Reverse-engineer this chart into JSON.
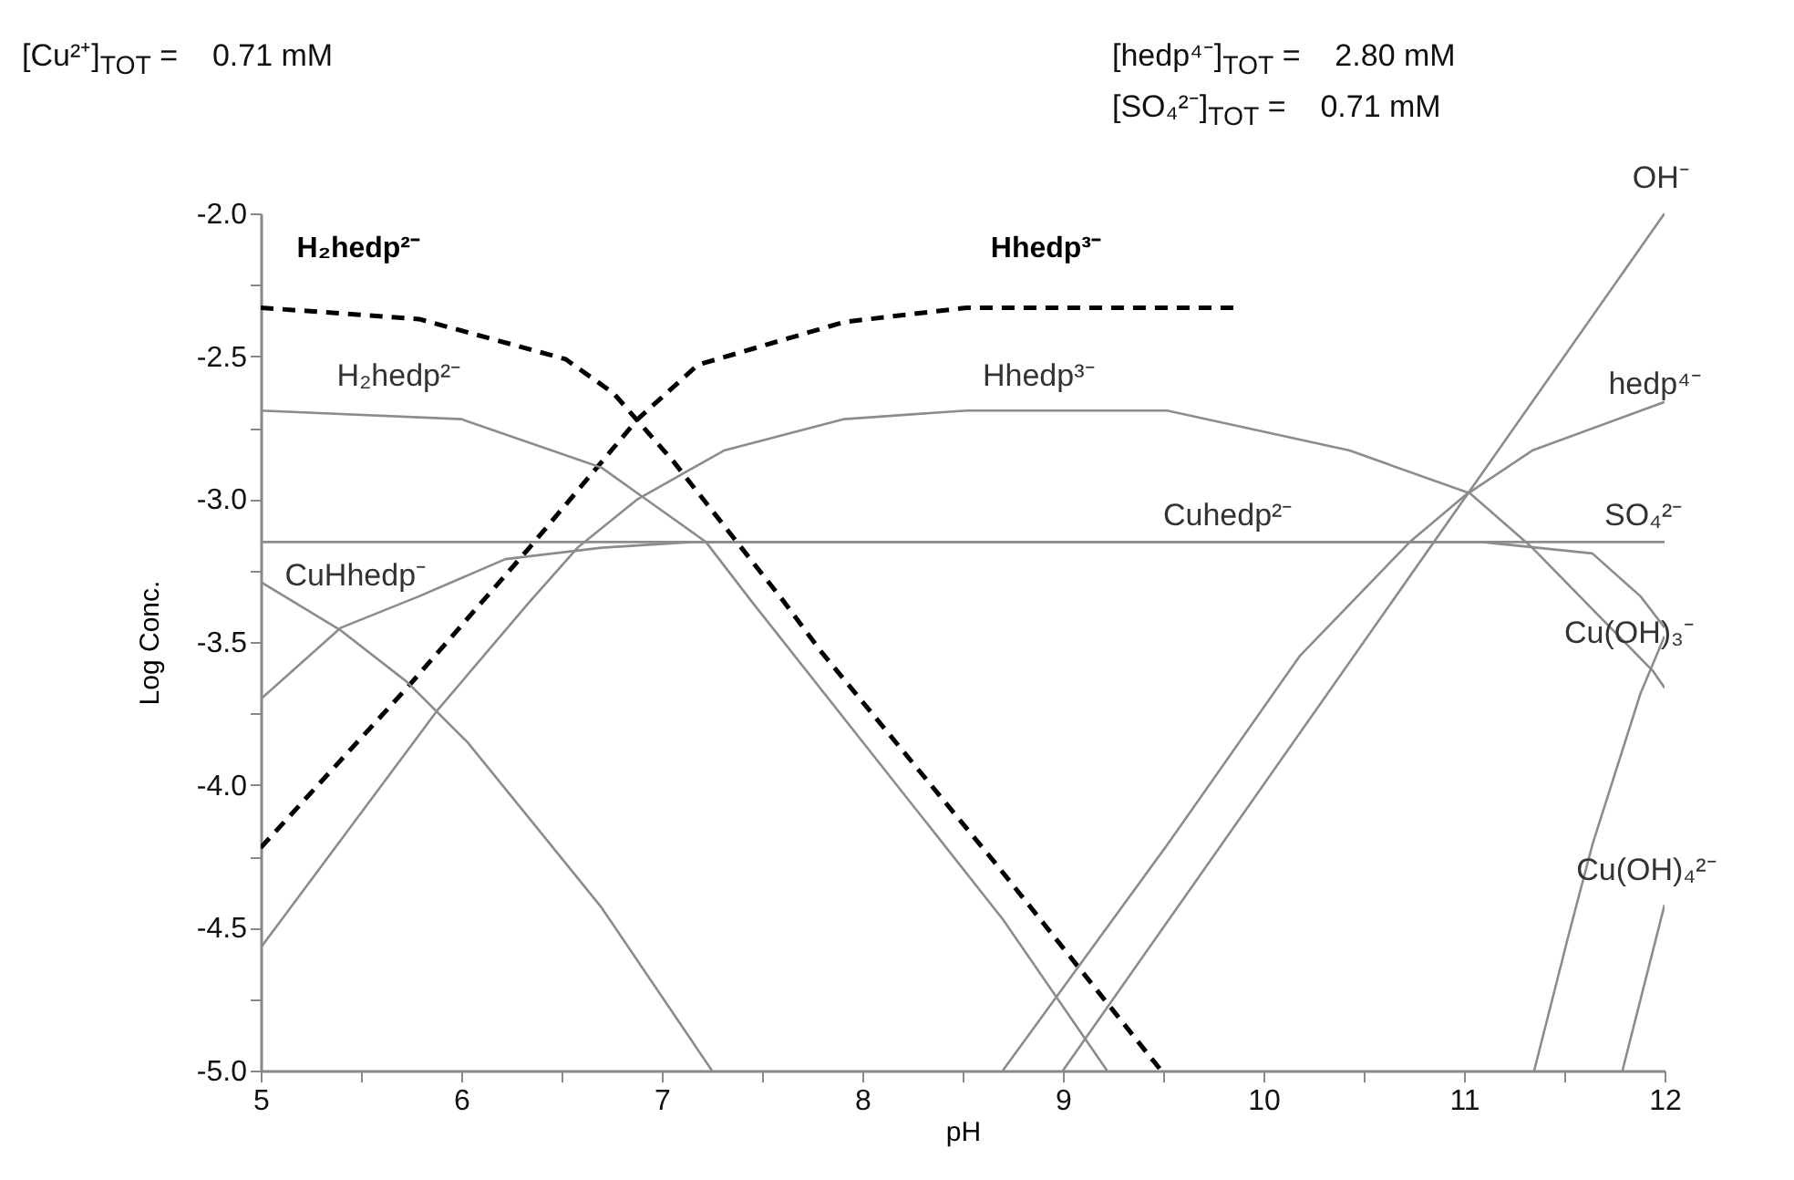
{
  "chart_data": {
    "type": "line",
    "xlabel": "pH",
    "ylabel": "Log Conc.",
    "annotations": [
      "[Cu²⁺]$_{TOT}$ =    0.71 mM",
      "[hedp⁴⁻]$_{TOT}$ =    2.80 mM",
      "[SO₄²⁻]$_{TOT}$ =    0.71 mM"
    ],
    "xlim": [
      5,
      12
    ],
    "ylim": [
      -5,
      -2
    ],
    "xticks": [
      5,
      {
        "value": 5.5,
        "label": null
      },
      6,
      {
        "value": 6.5,
        "label": null
      },
      7,
      {
        "value": 7.5,
        "label": null
      },
      8,
      {
        "value": 8.5,
        "label": null
      },
      9,
      {
        "value": 9.5,
        "label": null
      },
      10,
      {
        "value": 10.5,
        "label": null
      },
      11,
      {
        "value": 11.5,
        "label": null
      },
      12
    ],
    "yticks": [
      {
        "value": -5,
        "label": "-5.0"
      },
      {
        "value": -4.75,
        "label": null
      },
      {
        "value": -4.5,
        "label": "-4.5"
      },
      {
        "value": -4.25,
        "label": null
      },
      {
        "value": -4,
        "label": "-4.0"
      },
      {
        "value": -3.75,
        "label": null
      },
      {
        "value": -3.5,
        "label": "-3.5"
      },
      {
        "value": -3.25,
        "label": null
      },
      {
        "value": -3,
        "label": "-3.0"
      },
      {
        "value": -2.75,
        "label": null
      },
      {
        "value": -2.5,
        "label": "-2.5"
      },
      {
        "value": -2.25,
        "label": null
      },
      {
        "value": -2,
        "label": "-2.0"
      }
    ],
    "series": [
      {
        "name": "H₂hedp²⁻",
        "color": "#000000",
        "line_style": "dashed",
        "x": [
          5,
          5.79,
          6.52,
          6.76,
          7.06,
          7.61,
          7.79,
          8.67,
          9.49
        ],
        "values": [
          -2.33,
          -2.37,
          -2.51,
          -2.63,
          -2.87,
          -3.36,
          -3.53,
          -4.28,
          -5.0
        ]
      },
      {
        "name": "Hhedp³⁻",
        "color": "#000000",
        "line_style": "dashed",
        "x": [
          5,
          5.73,
          6.34,
          6.7,
          6.88,
          7.18,
          7.91,
          8.52,
          9.88
        ],
        "values": [
          -4.22,
          -3.66,
          -3.17,
          -2.87,
          -2.72,
          -2.53,
          -2.38,
          -2.33,
          -2.33
        ]
      },
      {
        "name": "H₂hedp²⁻",
        "color": "#8c8c8c",
        "line_style": "solid",
        "x": [
          5,
          6,
          6.7,
          6.9,
          7.22,
          7.45,
          8.7,
          9.22
        ],
        "values": [
          -2.69,
          -2.72,
          -2.89,
          -2.99,
          -3.15,
          -3.36,
          -4.47,
          -5.0
        ]
      },
      {
        "name": "Hhedp³⁻",
        "color": "#8c8c8c",
        "line_style": "solid",
        "x": [
          5,
          5.88,
          6.34,
          6.58,
          6.88,
          7.31,
          7.91,
          8.52,
          9.52,
          10.43,
          11.03,
          11.34,
          11.94,
          12
        ],
        "values": [
          -4.57,
          -3.74,
          -3.36,
          -3.17,
          -3.0,
          -2.83,
          -2.72,
          -2.69,
          -2.69,
          -2.83,
          -2.98,
          -3.17,
          -3.6,
          -3.66
        ]
      },
      {
        "name": "CuHhedp⁻",
        "color": "#8c8c8c",
        "line_style": "solid",
        "x": [
          5,
          5.4,
          5.73,
          6.03,
          6.4,
          6.7,
          7.25
        ],
        "values": [
          -3.29,
          -3.46,
          -3.64,
          -3.85,
          -4.17,
          -4.43,
          -5.0
        ]
      },
      {
        "name": "Cuhedp²⁻",
        "color": "#8c8c8c",
        "line_style": "solid",
        "x": [
          5,
          5.4,
          5.79,
          6.22,
          6.7,
          7.15,
          11.09,
          11.64,
          11.88,
          12
        ],
        "values": [
          -3.7,
          -3.45,
          -3.34,
          -3.21,
          -3.17,
          -3.15,
          -3.15,
          -3.19,
          -3.34,
          -3.45
        ]
      },
      {
        "name": "SO₄²⁻",
        "color": "#8c8c8c",
        "line_style": "solid",
        "x": [
          5,
          12
        ],
        "values": [
          -3.15,
          -3.15
        ]
      },
      {
        "name": "OH⁻",
        "color": "#8c8c8c",
        "line_style": "solid",
        "x": [
          9,
          12
        ],
        "values": [
          -5,
          -2
        ]
      },
      {
        "name": "hedp⁴⁻",
        "color": "#8c8c8c",
        "line_style": "solid",
        "x": [
          8.7,
          9.52,
          10.18,
          10.73,
          11.0,
          11.34,
          12
        ],
        "values": [
          -5,
          -4.21,
          -3.55,
          -3.15,
          -2.99,
          -2.83,
          -2.66
        ]
      },
      {
        "name": "Cu(OH)₃⁻",
        "color": "#8c8c8c",
        "line_style": "solid",
        "x": [
          11.35,
          11.52,
          11.64,
          11.88,
          12
        ],
        "values": [
          -5,
          -4.53,
          -4.21,
          -3.68,
          -3.48
        ]
      },
      {
        "name": "Cu(OH)₄²⁻",
        "color": "#8c8c8c",
        "line_style": "solid",
        "x": [
          11.79,
          12
        ],
        "values": [
          -5,
          -4.42
        ]
      }
    ]
  }
}
